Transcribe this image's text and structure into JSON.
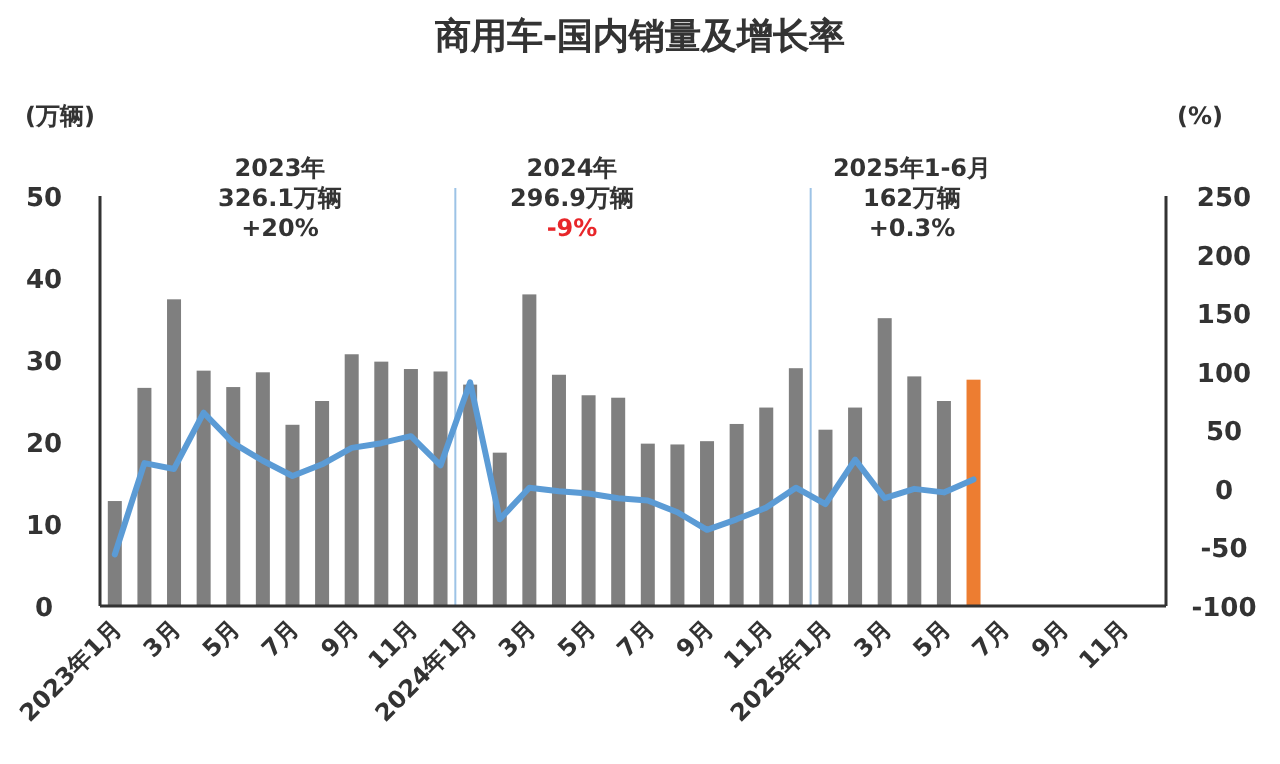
{
  "chart_data": {
    "type": "bar",
    "title": "商用车-国内销量及增长率",
    "ylabel": "(万辆)",
    "y2label": "(%)",
    "categories": [
      "2023年1月",
      null,
      "3月",
      null,
      "5月",
      null,
      "7月",
      null,
      "9月",
      null,
      "11月",
      null,
      "2024年1月",
      null,
      "3月",
      null,
      "5月",
      null,
      "7月",
      null,
      "9月",
      null,
      "11月",
      null,
      "2025年1月",
      null,
      "3月",
      null,
      "5月",
      null,
      "7月",
      null,
      "9月",
      null,
      "11月",
      null
    ],
    "series": [
      {
        "colors": [
          "#7f7f7f",
          "#7f7f7f",
          "#7f7f7f",
          "#7f7f7f",
          "#7f7f7f",
          "#7f7f7f",
          "#7f7f7f",
          "#7f7f7f",
          "#7f7f7f",
          "#7f7f7f",
          "#7f7f7f",
          "#7f7f7f",
          "#7f7f7f",
          "#7f7f7f",
          "#7f7f7f",
          "#7f7f7f",
          "#7f7f7f",
          "#7f7f7f",
          "#7f7f7f",
          "#7f7f7f",
          "#7f7f7f",
          "#7f7f7f",
          "#7f7f7f",
          "#7f7f7f",
          "#7f7f7f",
          "#7f7f7f",
          "#7f7f7f",
          "#7f7f7f",
          "#7f7f7f",
          "#ed7d31",
          "#7f7f7f",
          "#7f7f7f",
          "#7f7f7f",
          "#7f7f7f",
          "#7f7f7f",
          "#7f7f7f"
        ],
        "values": [
          12.8,
          26.6,
          37.4,
          28.7,
          26.7,
          28.5,
          22.1,
          25.0,
          30.7,
          29.8,
          28.9,
          28.6,
          27.0,
          18.7,
          38.0,
          28.2,
          25.7,
          25.4,
          19.8,
          19.7,
          20.1,
          22.2,
          24.2,
          29.0,
          21.5,
          24.2,
          35.1,
          28.0,
          25.0,
          27.6,
          null,
          null,
          null,
          null,
          null,
          null
        ]
      },
      {
        "type": "line",
        "axis": "y2",
        "color": "#5b9bd5",
        "values": [
          -56,
          22,
          17,
          65,
          39,
          24,
          11,
          21,
          35,
          39,
          45,
          20,
          91,
          -26,
          1,
          -2,
          -4,
          -8,
          -10,
          -20,
          -35,
          -26,
          -16,
          1,
          -13,
          25,
          -8,
          0,
          -3,
          8,
          null,
          null,
          null,
          null,
          null,
          null
        ]
      }
    ],
    "ylim": [
      0,
      50
    ],
    "yticks": [
      0,
      10,
      20,
      30,
      40,
      50
    ],
    "y2lim": [
      -100,
      250
    ],
    "y2ticks": [
      -100,
      -50,
      0,
      50,
      100,
      150,
      200,
      250
    ],
    "annotations": [
      "2023年\n326.1万辆\n+20%",
      "2024年\n296.9万辆",
      "-9%",
      "2025年1-6月\n162万辆\n+0.3%"
    ],
    "grid": false
  }
}
